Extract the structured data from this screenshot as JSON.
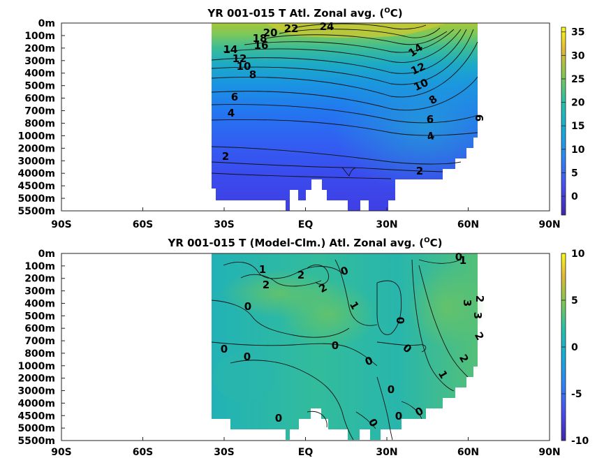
{
  "chart_data": [
    {
      "type": "heatmap",
      "title": "YR 001-015 T Atl. Zonal avg. (",
      "title_sup": "O",
      "title_end": "C)",
      "x_ticks": [
        "90S",
        "60S",
        "30S",
        "EQ",
        "30N",
        "60N",
        "90N"
      ],
      "x_tick_values": [
        -90,
        -60,
        -30,
        0,
        30,
        60,
        90
      ],
      "xlim": [
        -90,
        90
      ],
      "y_ticks": [
        "0m",
        "100m",
        "200m",
        "300m",
        "400m",
        "500m",
        "600m",
        "700m",
        "800m",
        "1000m",
        "2000m",
        "3000m",
        "4000m",
        "4500m",
        "5000m",
        "5500m"
      ],
      "data_extent": {
        "lat": [
          -35,
          64
        ]
      },
      "colorbar": {
        "ticks": [
          "35",
          "30",
          "25",
          "20",
          "15",
          "10",
          "5",
          "0"
        ],
        "tick_values": [
          35,
          30,
          25,
          20,
          15,
          10,
          5,
          0
        ],
        "range": [
          -4,
          36
        ]
      },
      "contour_labels": [
        "24",
        "22",
        "20",
        "18",
        "16",
        "14",
        "12",
        "10",
        "8",
        "6",
        "4",
        "2",
        "14",
        "12",
        "10",
        "8",
        "6",
        "4",
        "2",
        "6"
      ]
    },
    {
      "type": "heatmap",
      "title": "YR 001-015 T (Model-Clm.) Atl. Zonal avg. (",
      "title_sup": "O",
      "title_end": "C)",
      "x_ticks": [
        "90S",
        "60S",
        "30S",
        "EQ",
        "30N",
        "60N",
        "90N"
      ],
      "x_tick_values": [
        -90,
        -60,
        -30,
        0,
        30,
        60,
        90
      ],
      "xlim": [
        -90,
        90
      ],
      "y_ticks": [
        "0m",
        "100m",
        "200m",
        "300m",
        "400m",
        "500m",
        "600m",
        "700m",
        "800m",
        "1000m",
        "2000m",
        "3000m",
        "4000m",
        "4500m",
        "5000m",
        "5500m"
      ],
      "data_extent": {
        "lat": [
          -35,
          64
        ]
      },
      "colorbar": {
        "ticks": [
          "10",
          "5",
          "0",
          "-5",
          "-10"
        ],
        "tick_values": [
          10,
          5,
          0,
          -5,
          -10
        ],
        "range": [
          -10,
          10
        ]
      },
      "contour_labels": [
        "1",
        "2",
        "2",
        "0",
        "2",
        "0",
        "0",
        "1",
        "0",
        "0",
        "0",
        "0",
        "0",
        "0",
        "0",
        "0",
        "0",
        "0",
        "1",
        "2",
        "3",
        "3",
        "2",
        "2",
        "1",
        "0",
        "1",
        "2"
      ]
    }
  ]
}
